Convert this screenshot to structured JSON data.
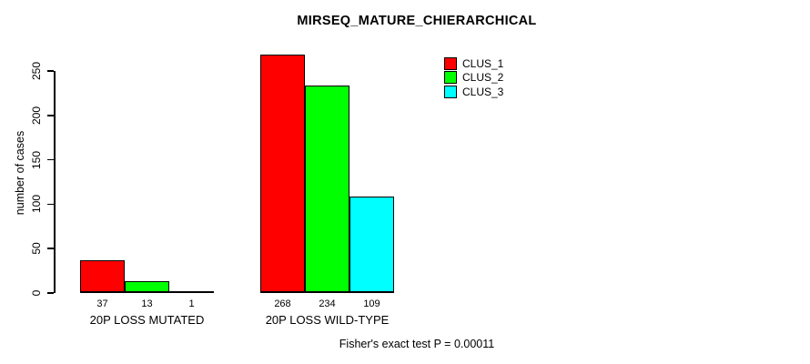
{
  "title": "MIRSEQ_MATURE_CHIERARCHICAL",
  "footer": "Fisher's exact test P = 0.00011",
  "chart_data": {
    "type": "bar",
    "title": "MIRSEQ_MATURE_CHIERARCHICAL",
    "xlabel": "",
    "ylabel": "number of cases",
    "categories": [
      "20P LOSS MUTATED",
      "20P LOSS WILD-TYPE"
    ],
    "series": [
      {
        "name": "CLUS_1",
        "color": "#ff0000",
        "values": [
          37,
          268
        ]
      },
      {
        "name": "CLUS_2",
        "color": "#00ff00",
        "values": [
          13,
          234
        ]
      },
      {
        "name": "CLUS_3",
        "color": "#00ffff",
        "values": [
          1,
          109
        ]
      }
    ],
    "bar_value_labels": [
      [
        37,
        13,
        1
      ],
      [
        268,
        234,
        109
      ]
    ],
    "yticks": [
      0,
      50,
      100,
      150,
      200,
      250
    ],
    "ylim": [
      0,
      250
    ],
    "grid": false,
    "legend_position": "top-right",
    "annotation": "Fisher's exact test P = 0.00011"
  }
}
